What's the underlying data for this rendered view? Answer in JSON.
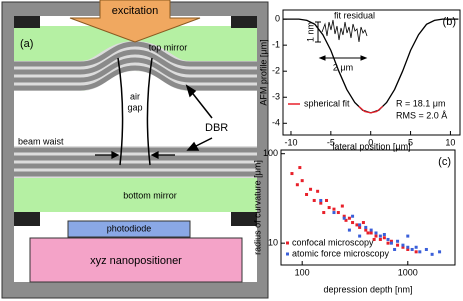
{
  "diagram": {
    "panel_label": "(a)",
    "excitation": "excitation",
    "top_mirror": "top mirror",
    "air_gap_lines": [
      "air",
      "gap"
    ],
    "beam_waist": "beam waist",
    "dbr": "DBR",
    "bottom_mirror": "bottom mirror",
    "photodiode": "photodiode",
    "nanopositioner": "xyz nanopositioner"
  },
  "chart_data": [
    {
      "type": "line",
      "panel_label": "(b)",
      "x_label": "lateral position [μm]",
      "y_label": "AFM profile [μm]",
      "xlim": [
        -11,
        11.2
      ],
      "ylim": [
        -4.45,
        0.35
      ],
      "xticks": [
        -10,
        -5,
        0,
        5,
        10
      ],
      "yticks": [
        -4,
        -3,
        -2,
        -1,
        0
      ],
      "series": [
        {
          "color": "#000000",
          "x": [
            -11,
            -9,
            -8,
            -7,
            -6,
            -5,
            -4,
            -3,
            -2,
            -1,
            0,
            1,
            2,
            3,
            4,
            5,
            6,
            7,
            8,
            9,
            11
          ],
          "values": [
            0,
            0,
            -0.05,
            -0.2,
            -0.6,
            -1.2,
            -2.0,
            -2.7,
            -3.2,
            -3.5,
            -3.6,
            -3.5,
            -3.2,
            -2.7,
            -2.0,
            -1.2,
            -0.6,
            -0.2,
            -0.05,
            0,
            0
          ]
        },
        {
          "name": "spherical fit",
          "color": "#e8202a",
          "x": [
            -1.5,
            -0.75,
            0,
            0.75,
            1.5
          ],
          "values": [
            -3.35,
            -3.55,
            -3.6,
            -3.55,
            -3.35
          ]
        }
      ],
      "inset_title": "fit residual",
      "scale_bars": [
        "1 nm",
        "2 μm"
      ],
      "annotations": [
        "R = 18.1 μm",
        "RMS = 2.0 Å"
      ]
    },
    {
      "type": "scatter",
      "panel_label": "(c)",
      "x_label": "depression depth [nm]",
      "y_label": "radius of curvature [μm]",
      "xscale": "log",
      "yscale": "log",
      "xlim": [
        63,
        2800
      ],
      "ylim": [
        5.7,
        110
      ],
      "xticks": [
        100,
        1000
      ],
      "yticks": [
        10,
        100
      ],
      "series": [
        {
          "name": "confocal microscopy",
          "color": "#e8202a",
          "x": [
            80,
            90,
            100,
            110,
            120,
            130,
            140,
            150,
            170,
            180,
            200,
            220,
            250,
            260,
            280,
            300,
            330,
            350,
            400,
            420,
            450,
            500,
            550,
            600,
            650,
            700,
            800,
            900,
            1000,
            1200,
            95,
            160,
            240,
            380,
            480
          ],
          "values": [
            60,
            45,
            50,
            35,
            40,
            30,
            38,
            28,
            30,
            25,
            24,
            22,
            20,
            18,
            19,
            17,
            16,
            15,
            14,
            13,
            13,
            12,
            11,
            11.5,
            10,
            10.5,
            9.5,
            9,
            8.5,
            8,
            70,
            22,
            26,
            17,
            11
          ]
        },
        {
          "name": "atomic force microscopy",
          "color": "#3a5fd9",
          "x": [
            150,
            200,
            250,
            300,
            350,
            400,
            450,
            500,
            550,
            600,
            650,
            700,
            800,
            900,
            1000,
            1100,
            1200,
            1300,
            1500,
            1700,
            2000,
            350,
            750,
            1000,
            280
          ],
          "values": [
            30,
            22,
            19,
            20,
            16,
            15,
            14,
            13,
            12,
            12.5,
            11,
            10,
            10.5,
            9.5,
            9,
            8.5,
            9,
            8,
            8.5,
            7.5,
            8,
            12,
            8.5,
            12,
            14
          ]
        }
      ]
    }
  ]
}
